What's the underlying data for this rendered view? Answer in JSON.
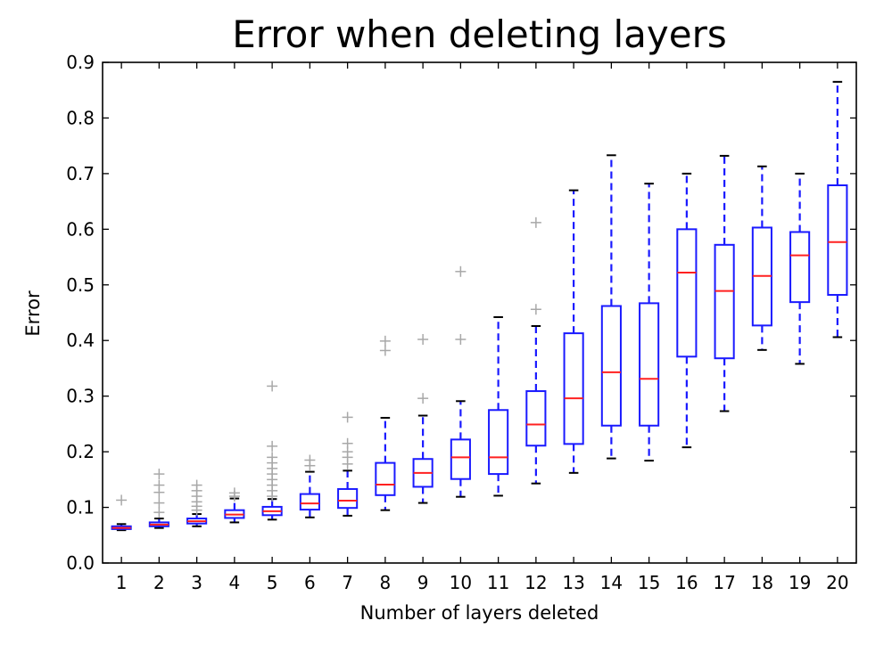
{
  "chart_data": {
    "type": "box",
    "title": "Error when deleting layers",
    "xlabel": "Number of layers deleted",
    "ylabel": "Error",
    "ylim": [
      0.0,
      0.9
    ],
    "yticks": [
      "0.0",
      "0.1",
      "0.2",
      "0.3",
      "0.4",
      "0.5",
      "0.6",
      "0.7",
      "0.8",
      "0.9"
    ],
    "categories": [
      "1",
      "2",
      "3",
      "4",
      "5",
      "6",
      "7",
      "8",
      "9",
      "10",
      "11",
      "12",
      "13",
      "14",
      "15",
      "16",
      "17",
      "18",
      "19",
      "20"
    ],
    "grid": false,
    "colors": {
      "box": "#1a1aff",
      "median": "#ff2020",
      "outlier": "#a8a8a8",
      "whisker_cap": "#000000"
    },
    "boxes": [
      {
        "whislo": 0.059,
        "q1": 0.061,
        "med": 0.063,
        "q3": 0.066,
        "whishi": 0.07,
        "fliers": [
          0.113
        ]
      },
      {
        "whislo": 0.063,
        "q1": 0.066,
        "med": 0.069,
        "q3": 0.073,
        "whishi": 0.08,
        "fliers": [
          0.091,
          0.108,
          0.127,
          0.14,
          0.16
        ]
      },
      {
        "whislo": 0.066,
        "q1": 0.071,
        "med": 0.075,
        "q3": 0.08,
        "whishi": 0.088,
        "fliers": [
          0.095,
          0.102,
          0.11,
          0.12,
          0.13,
          0.14
        ]
      },
      {
        "whislo": 0.073,
        "q1": 0.081,
        "med": 0.087,
        "q3": 0.095,
        "whishi": 0.116,
        "fliers": [
          0.12,
          0.126
        ]
      },
      {
        "whislo": 0.078,
        "q1": 0.086,
        "med": 0.093,
        "q3": 0.101,
        "whishi": 0.115,
        "fliers": [
          0.12,
          0.13,
          0.14,
          0.15,
          0.16,
          0.17,
          0.18,
          0.19,
          0.21,
          0.318
        ]
      },
      {
        "whislo": 0.082,
        "q1": 0.096,
        "med": 0.107,
        "q3": 0.124,
        "whishi": 0.164,
        "fliers": [
          0.175,
          0.185
        ]
      },
      {
        "whislo": 0.085,
        "q1": 0.099,
        "med": 0.112,
        "q3": 0.133,
        "whishi": 0.166,
        "fliers": [
          0.178,
          0.19,
          0.2,
          0.215,
          0.262
        ]
      },
      {
        "whislo": 0.095,
        "q1": 0.122,
        "med": 0.141,
        "q3": 0.18,
        "whishi": 0.261,
        "fliers": [
          0.382,
          0.399
        ]
      },
      {
        "whislo": 0.108,
        "q1": 0.137,
        "med": 0.162,
        "q3": 0.187,
        "whishi": 0.265,
        "fliers": [
          0.296,
          0.402
        ]
      },
      {
        "whislo": 0.119,
        "q1": 0.151,
        "med": 0.19,
        "q3": 0.222,
        "whishi": 0.291,
        "fliers": [
          0.402,
          0.524
        ]
      },
      {
        "whislo": 0.121,
        "q1": 0.16,
        "med": 0.19,
        "q3": 0.275,
        "whishi": 0.442,
        "fliers": []
      },
      {
        "whislo": 0.143,
        "q1": 0.211,
        "med": 0.249,
        "q3": 0.309,
        "whishi": 0.426,
        "fliers": [
          0.456,
          0.612
        ]
      },
      {
        "whislo": 0.162,
        "q1": 0.214,
        "med": 0.296,
        "q3": 0.413,
        "whishi": 0.67,
        "fliers": []
      },
      {
        "whislo": 0.188,
        "q1": 0.247,
        "med": 0.343,
        "q3": 0.462,
        "whishi": 0.733,
        "fliers": []
      },
      {
        "whislo": 0.184,
        "q1": 0.247,
        "med": 0.331,
        "q3": 0.467,
        "whishi": 0.682,
        "fliers": []
      },
      {
        "whislo": 0.208,
        "q1": 0.371,
        "med": 0.522,
        "q3": 0.6,
        "whishi": 0.7,
        "fliers": []
      },
      {
        "whislo": 0.273,
        "q1": 0.368,
        "med": 0.489,
        "q3": 0.572,
        "whishi": 0.732,
        "fliers": []
      },
      {
        "whislo": 0.383,
        "q1": 0.427,
        "med": 0.516,
        "q3": 0.603,
        "whishi": 0.713,
        "fliers": []
      },
      {
        "whislo": 0.358,
        "q1": 0.469,
        "med": 0.553,
        "q3": 0.595,
        "whishi": 0.7,
        "fliers": []
      },
      {
        "whislo": 0.406,
        "q1": 0.482,
        "med": 0.577,
        "q3": 0.679,
        "whishi": 0.865,
        "fliers": []
      }
    ]
  }
}
